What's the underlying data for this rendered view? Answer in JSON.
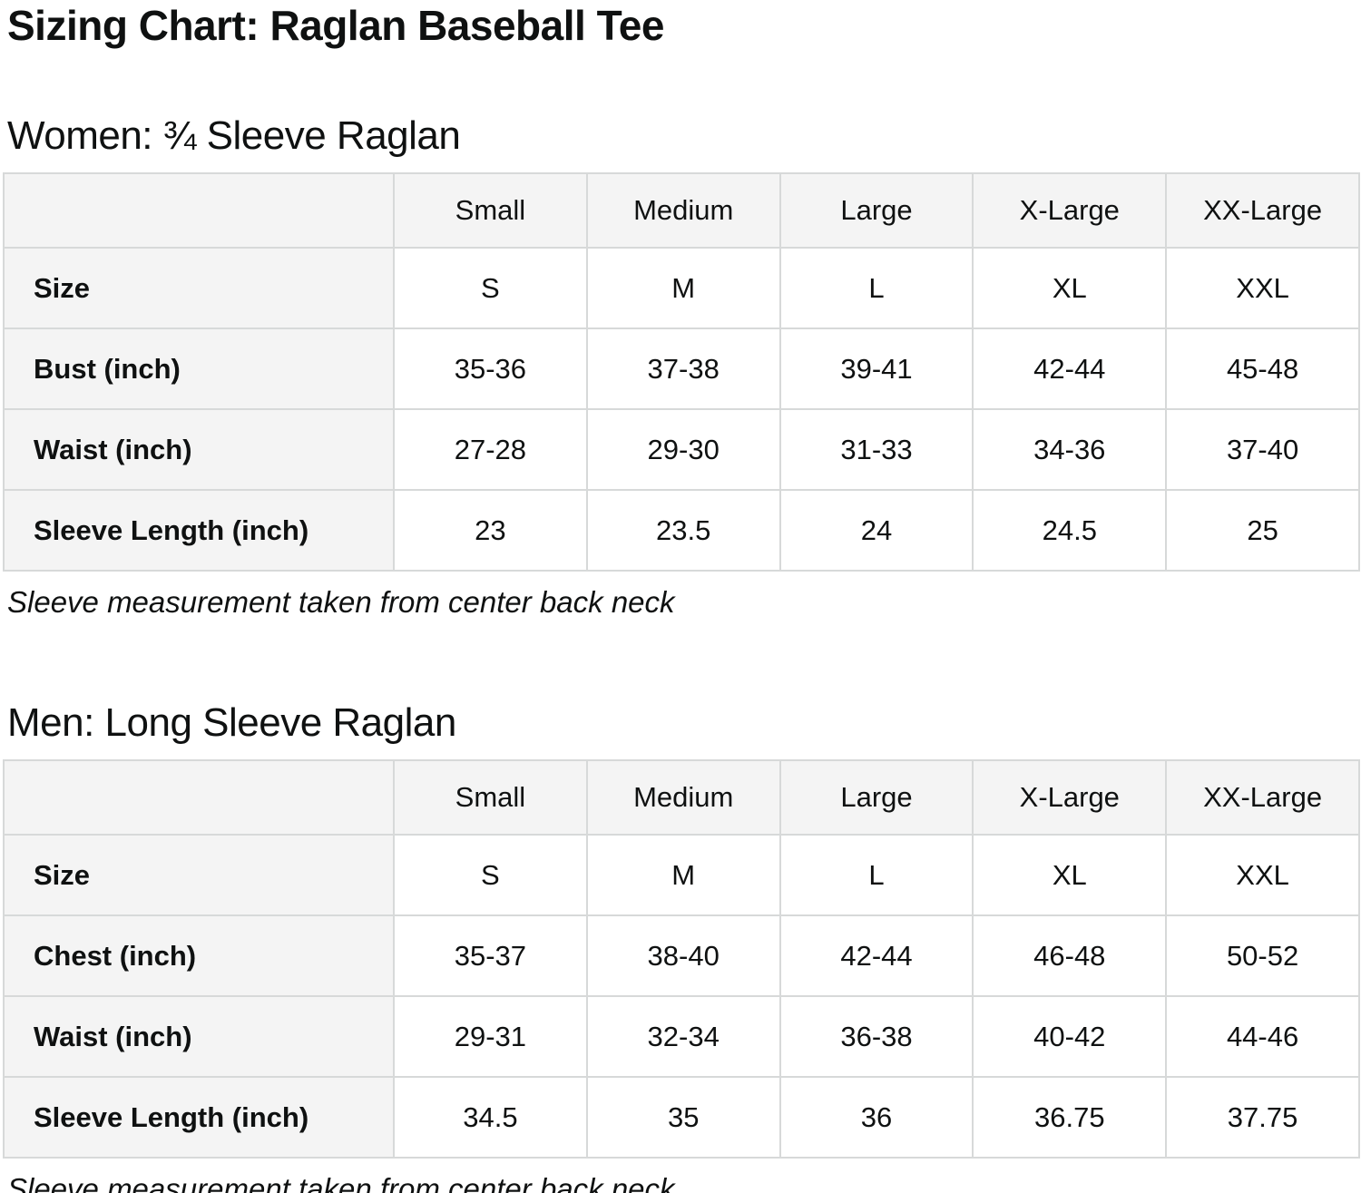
{
  "page": {
    "title": "Sizing Chart: Raglan Baseball Tee",
    "colors": {
      "header_cell_bg": "#f4f4f4",
      "border": "#d7d9d9",
      "text": "#0f1111",
      "data_cell_bg": "#ffffff"
    }
  },
  "sections": [
    {
      "heading": "Women: ¾ Sleeve Raglan",
      "note": "Sleeve measurement taken from center back neck",
      "table": {
        "column_headers": [
          "",
          "Small",
          "Medium",
          "Large",
          "X-Large",
          "XX-Large"
        ],
        "rows": [
          {
            "label": "Size",
            "values": [
              "S",
              "M",
              "L",
              "XL",
              "XXL"
            ]
          },
          {
            "label": "Bust (inch)",
            "values": [
              "35-36",
              "37-38",
              "39-41",
              "42-44",
              "45-48"
            ]
          },
          {
            "label": "Waist (inch)",
            "values": [
              "27-28",
              "29-30",
              "31-33",
              "34-36",
              "37-40"
            ]
          },
          {
            "label": "Sleeve Length (inch)",
            "values": [
              "23",
              "23.5",
              "24",
              "24.5",
              "25"
            ]
          }
        ]
      }
    },
    {
      "heading": "Men: Long Sleeve Raglan",
      "note": "Sleeve measurement taken from center back neck",
      "table": {
        "column_headers": [
          "",
          "Small",
          "Medium",
          "Large",
          "X-Large",
          "XX-Large"
        ],
        "rows": [
          {
            "label": "Size",
            "values": [
              "S",
              "M",
              "L",
              "XL",
              "XXL"
            ]
          },
          {
            "label": "Chest (inch)",
            "values": [
              "35-37",
              "38-40",
              "42-44",
              "46-48",
              "50-52"
            ]
          },
          {
            "label": "Waist (inch)",
            "values": [
              "29-31",
              "32-34",
              "36-38",
              "40-42",
              "44-46"
            ]
          },
          {
            "label": "Sleeve Length (inch)",
            "values": [
              "34.5",
              "35",
              "36",
              "36.75",
              "37.75"
            ]
          }
        ]
      }
    }
  ]
}
